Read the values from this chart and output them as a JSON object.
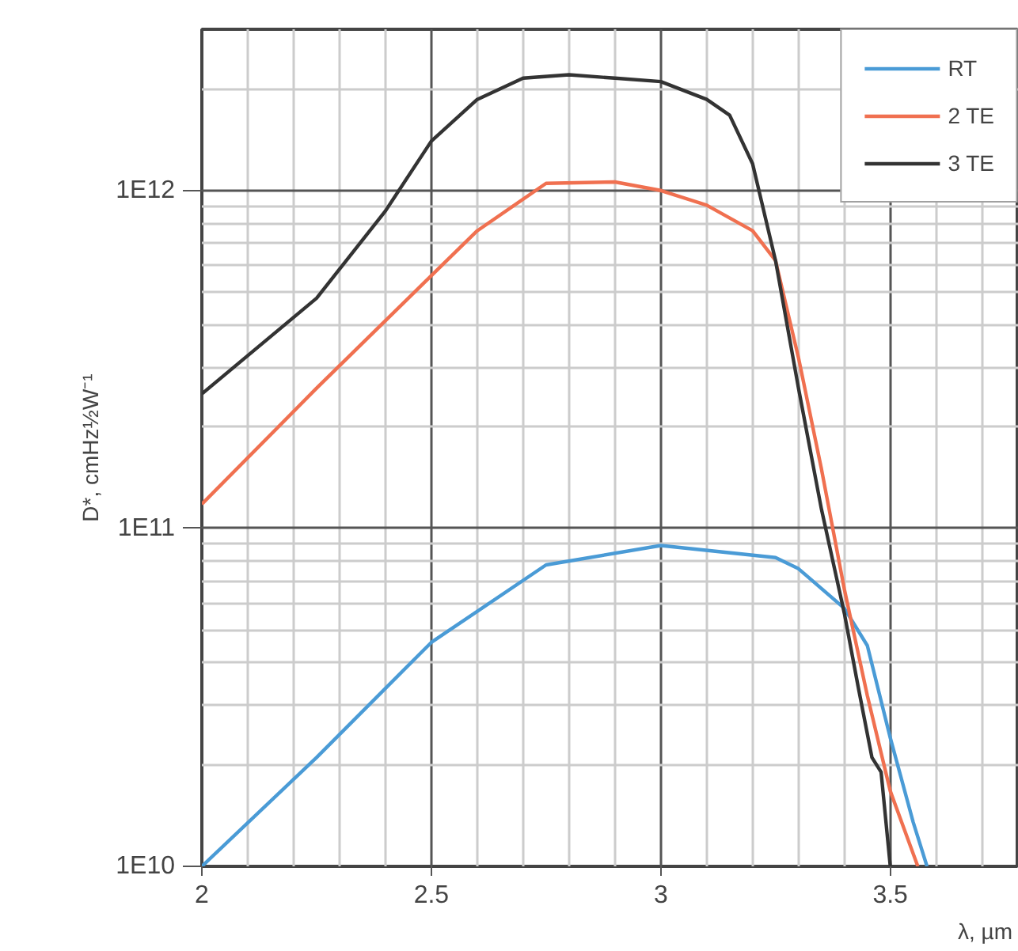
{
  "chart_data": {
    "type": "line",
    "xlabel": "λ, µm",
    "ylabel": "D*, cmHz½W⁻¹",
    "log": "y",
    "grid": true,
    "legend": "top right",
    "marker": "none",
    "line_style": "solid",
    "xlim": [
      2,
      3.78
    ],
    "xticks": [
      2,
      2.5,
      3,
      3.5
    ],
    "ylim": [
      10000000000.0,
      3000000000000.0
    ],
    "yticks": [
      {
        "value": 10000000000.0,
        "label": "1E10"
      },
      {
        "value": 100000000000.0,
        "label": "1E11"
      },
      {
        "value": 1000000000000.0,
        "label": "1E12"
      }
    ],
    "series": [
      {
        "name": "RT",
        "color": "#4a9bd6",
        "x": [
          2,
          2.25,
          2.5,
          2.75,
          3,
          3.25,
          3.3,
          3.4,
          3.45,
          3.5,
          3.55,
          3.58
        ],
        "values": [
          10000000000.0,
          21000000000.0,
          46000000000.0,
          78000000000.0,
          89000000000.0,
          82000000000.0,
          76000000000.0,
          58000000000.0,
          45000000000.0,
          24000000000.0,
          13500000000.0,
          10000000000.0
        ]
      },
      {
        "name": "2 TE",
        "color": "#f07050",
        "x": [
          2,
          2.25,
          2.5,
          2.6,
          2.75,
          2.9,
          3,
          3.1,
          3.2,
          3.25,
          3.3,
          3.35,
          3.4,
          3.45,
          3.5,
          3.56
        ],
        "values": [
          118000000000.0,
          260000000000.0,
          560000000000.0,
          760000000000.0,
          1050000000000.0,
          1060000000000.0,
          1000000000000.0,
          905000000000.0,
          760000000000.0,
          620000000000.0,
          320000000000.0,
          150000000000.0,
          66000000000.0,
          32000000000.0,
          16700000000.0,
          10000000000.0
        ]
      },
      {
        "name": "3 TE",
        "color": "#333333",
        "x": [
          2,
          2.25,
          2.4,
          2.5,
          2.6,
          2.7,
          2.8,
          2.9,
          3,
          3.1,
          3.15,
          3.2,
          3.25,
          3.3,
          3.35,
          3.4,
          3.43,
          3.46,
          3.48,
          3.5
        ],
        "values": [
          250000000000.0,
          480000000000.0,
          870000000000.0,
          1400000000000.0,
          1860000000000.0,
          2150000000000.0,
          2200000000000.0,
          2150000000000.0,
          2100000000000.0,
          1860000000000.0,
          1670000000000.0,
          1200000000000.0,
          620000000000.0,
          260000000000.0,
          114000000000.0,
          56000000000.0,
          34000000000.0,
          21000000000.0,
          19000000000.0,
          10000000000.0
        ]
      }
    ]
  }
}
